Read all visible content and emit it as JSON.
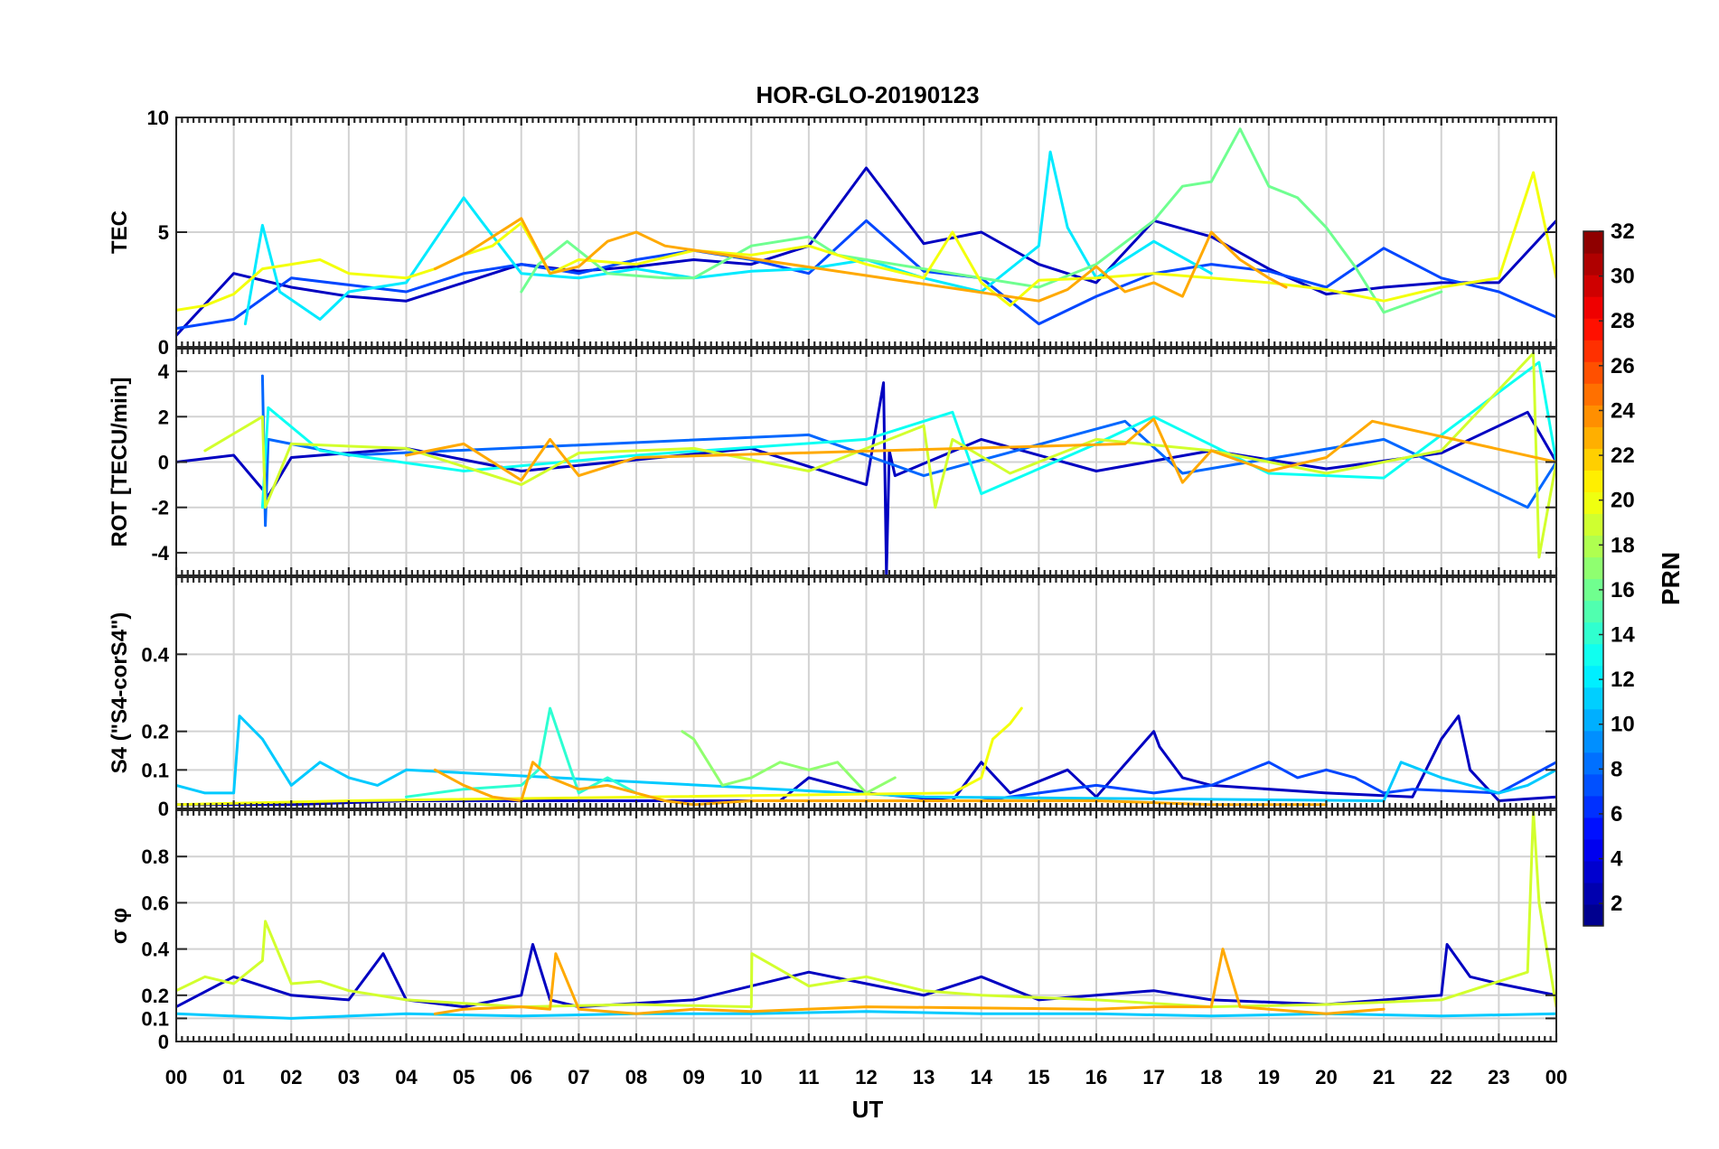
{
  "chart_data": {
    "type": "line",
    "title": "HOR-GLO-20190123",
    "xlabel": "UT",
    "x_ticks": [
      "00",
      "01",
      "02",
      "03",
      "04",
      "05",
      "06",
      "07",
      "08",
      "09",
      "10",
      "11",
      "12",
      "13",
      "14",
      "15",
      "16",
      "17",
      "18",
      "19",
      "20",
      "21",
      "22",
      "23",
      "00"
    ],
    "x_range": [
      0,
      24
    ],
    "colorbar": {
      "label": "PRN",
      "range": [
        1,
        32
      ],
      "ticks": [
        2,
        4,
        6,
        8,
        10,
        12,
        14,
        16,
        18,
        20,
        22,
        24,
        26,
        28,
        30,
        32
      ],
      "colormap": "jet",
      "levels": 32
    },
    "panels": [
      {
        "id": "tec",
        "ylabel": "TEC",
        "ylim": [
          0,
          10
        ],
        "yticks": [
          0,
          5,
          10
        ],
        "series": [
          {
            "prn": 3,
            "x": [
              0.0,
              1.0,
              2.0,
              3.0,
              4.0,
              5.0,
              6.0,
              7.0,
              8.0,
              9.0,
              10.0,
              11.0,
              12.0,
              13.0,
              14.0,
              15.0,
              16.0,
              17.0,
              18.0,
              19.0,
              20.0,
              21.0,
              22.0,
              23.0,
              24.0
            ],
            "y": [
              0.5,
              3.2,
              2.6,
              2.2,
              2.0,
              2.8,
              3.6,
              3.3,
              3.5,
              3.8,
              3.6,
              4.4,
              7.8,
              4.5,
              5.0,
              3.6,
              2.8,
              5.5,
              4.8,
              3.4,
              2.3,
              2.6,
              2.8,
              2.8,
              5.5
            ]
          },
          {
            "prn": 7,
            "x": [
              0.0,
              1.0,
              2.0,
              3.0,
              4.0,
              5.0,
              6.0,
              7.0,
              8.0,
              9.0,
              10.0,
              11.0,
              12.0,
              13.0,
              14.0,
              15.0,
              16.0,
              17.0,
              18.0,
              19.0,
              20.0,
              21.0,
              22.0,
              23.0,
              24.0
            ],
            "y": [
              0.8,
              1.2,
              3.0,
              2.7,
              2.4,
              3.2,
              3.6,
              3.2,
              3.8,
              4.2,
              3.8,
              3.2,
              5.5,
              3.3,
              3.0,
              1.0,
              2.2,
              3.2,
              3.6,
              3.3,
              2.6,
              4.3,
              3.0,
              2.4,
              1.3
            ]
          },
          {
            "prn": 12,
            "x": [
              1.2,
              1.5,
              1.8,
              2.5,
              3.0,
              4.0,
              5.0,
              5.3,
              6.0,
              7.0,
              8.0,
              9.0,
              10.0,
              11.0,
              12.0,
              13.0,
              14.0,
              15.0,
              15.2,
              15.5,
              16.0,
              17.0,
              18.0
            ],
            "y": [
              1.0,
              5.3,
              2.4,
              1.2,
              2.4,
              2.8,
              6.5,
              5.5,
              3.2,
              3.0,
              3.4,
              3.0,
              3.3,
              3.4,
              3.8,
              3.0,
              2.4,
              4.4,
              8.5,
              5.2,
              3.0,
              4.6,
              3.2
            ]
          },
          {
            "prn": 16,
            "x": [
              6.0,
              6.3,
              6.8,
              7.5,
              8.5,
              9.0,
              10.0,
              11.0,
              11.5,
              15.0,
              16.0,
              17.0,
              17.5,
              18.0,
              18.5,
              19.0,
              19.5,
              20.0,
              20.5,
              21.0,
              22.0
            ],
            "y": [
              2.4,
              3.6,
              4.6,
              3.2,
              3.0,
              3.0,
              4.4,
              4.8,
              4.0,
              2.6,
              3.6,
              5.5,
              7.0,
              7.2,
              9.5,
              7.0,
              6.5,
              5.2,
              3.5,
              1.5,
              2.4
            ]
          },
          {
            "prn": 20,
            "x": [
              0.0,
              0.5,
              1.0,
              1.5,
              2.0,
              2.5,
              3.0,
              4.0,
              4.5,
              5.0,
              5.5,
              6.0,
              6.5,
              7.0,
              8.0,
              9.0,
              10.0,
              11.0,
              12.0,
              13.0,
              13.5,
              14.0,
              14.5,
              15.0,
              16.0,
              17.0,
              18.0,
              19.0,
              20.0,
              21.0,
              22.0,
              23.0,
              23.6,
              24.0
            ],
            "y": [
              1.6,
              1.8,
              2.3,
              3.4,
              3.6,
              3.8,
              3.2,
              3.0,
              3.4,
              4.0,
              4.4,
              5.4,
              3.2,
              3.8,
              3.6,
              4.2,
              4.0,
              4.4,
              3.6,
              3.0,
              5.0,
              2.8,
              1.8,
              2.9,
              3.0,
              3.2,
              3.0,
              2.8,
              2.5,
              2.0,
              2.6,
              3.0,
              7.6,
              3.0
            ]
          },
          {
            "prn": 23,
            "x": [
              4.5,
              5.0,
              6.0,
              6.5,
              7.0,
              7.5,
              8.0,
              8.5,
              15.0,
              15.5,
              16.0,
              16.5,
              17.0,
              17.5,
              18.0,
              18.5,
              19.0,
              19.3
            ],
            "y": [
              3.4,
              4.0,
              5.6,
              3.2,
              3.5,
              4.6,
              5.0,
              4.4,
              2.0,
              2.5,
              3.5,
              2.4,
              2.8,
              2.2,
              5.0,
              3.8,
              3.0,
              2.6
            ]
          }
        ]
      },
      {
        "id": "rot",
        "ylabel": "ROT [TECU/min]",
        "ylim": [
          -5,
          5
        ],
        "yticks": [
          -4,
          -2,
          0,
          2,
          4
        ],
        "series": [
          {
            "prn": 3,
            "x": [
              0.0,
              1.0,
              1.6,
              2.0,
              4.0,
              6.0,
              8.0,
              10.0,
              12.0,
              12.3,
              12.35,
              12.4,
              12.5,
              14.0,
              16.0,
              18.0,
              20.0,
              22.0,
              23.5,
              24.0
            ],
            "y": [
              0.0,
              0.3,
              -1.5,
              0.2,
              0.6,
              -0.4,
              0.1,
              0.6,
              -1.0,
              3.5,
              -5.0,
              0.5,
              -0.6,
              1.0,
              -0.4,
              0.5,
              -0.3,
              0.4,
              2.2,
              0.0
            ]
          },
          {
            "prn": 8,
            "x": [
              1.5,
              1.55,
              1.6,
              3.0,
              11.0,
              13.0,
              16.5,
              17.5,
              21.0,
              23.5,
              24.0
            ],
            "y": [
              3.8,
              -2.8,
              1.0,
              0.3,
              1.2,
              -0.6,
              1.8,
              -0.5,
              1.0,
              -2.0,
              0.0
            ]
          },
          {
            "prn": 13,
            "x": [
              1.5,
              1.6,
              2.5,
              5.0,
              8.0,
              12.0,
              13.5,
              14.0,
              16.0,
              17.0,
              19.0,
              21.0,
              23.7,
              24.0
            ],
            "y": [
              -2.0,
              2.4,
              0.5,
              -0.4,
              0.3,
              1.0,
              2.2,
              -1.4,
              0.8,
              2.0,
              -0.5,
              -0.7,
              4.4,
              0.0
            ]
          },
          {
            "prn": 19,
            "x": [
              0.5,
              1.5,
              1.55,
              2.0,
              4.0,
              6.0,
              7.0,
              9.0,
              11.0,
              13.0,
              13.2,
              13.5,
              14.5,
              16.0,
              18.0,
              20.0,
              22.0,
              23.6,
              23.7,
              24.0
            ],
            "y": [
              0.5,
              2.0,
              -2.0,
              0.8,
              0.6,
              -1.0,
              0.4,
              0.6,
              -0.4,
              1.6,
              -2.0,
              1.0,
              -0.5,
              1.0,
              0.5,
              -0.5,
              0.5,
              4.8,
              -4.2,
              0.0
            ]
          },
          {
            "prn": 23,
            "x": [
              4.0,
              5.0,
              6.0,
              6.5,
              7.0,
              8.0,
              16.5,
              17.0,
              17.5,
              18.0,
              19.0,
              20.0,
              20.8,
              24.0
            ],
            "y": [
              0.3,
              0.8,
              -0.8,
              1.0,
              -0.6,
              0.2,
              0.8,
              1.9,
              -0.9,
              0.5,
              -0.4,
              0.2,
              1.8,
              0.0
            ]
          }
        ]
      },
      {
        "id": "s4",
        "ylabel": "S4 (\"S4-corS4\")",
        "ylim": [
          0,
          0.6
        ],
        "yticks": [
          0,
          0.1,
          0.2,
          0.4
        ],
        "series": [
          {
            "prn": 3,
            "x": [
              0.0,
              2.0,
              4.0,
              10.5,
              11.0,
              12.0,
              13.5,
              14.0,
              14.5,
              15.5,
              16.0,
              17.0,
              17.1,
              17.5,
              18.0,
              20.0,
              21.5,
              22.0,
              22.3,
              22.5,
              23.0,
              24.0
            ],
            "y": [
              0.01,
              0.01,
              0.02,
              0.02,
              0.08,
              0.04,
              0.02,
              0.12,
              0.04,
              0.1,
              0.03,
              0.2,
              0.16,
              0.08,
              0.06,
              0.04,
              0.03,
              0.18,
              0.24,
              0.1,
              0.02,
              0.03
            ]
          },
          {
            "prn": 7,
            "x": [
              14.0,
              15.0,
              16.0,
              17.0,
              18.0,
              19.0,
              19.5,
              20.0,
              20.5,
              21.0,
              21.5,
              23.0,
              24.0
            ],
            "y": [
              0.02,
              0.04,
              0.06,
              0.04,
              0.06,
              0.12,
              0.08,
              0.1,
              0.08,
              0.04,
              0.05,
              0.04,
              0.12
            ]
          },
          {
            "prn": 11,
            "x": [
              0.0,
              0.5,
              1.0,
              1.1,
              1.5,
              2.0,
              2.5,
              3.0,
              3.5,
              4.0,
              13.0,
              21.0,
              21.3,
              22.0,
              22.5,
              23.0,
              23.5,
              24.0
            ],
            "y": [
              0.06,
              0.04,
              0.04,
              0.24,
              0.18,
              0.06,
              0.12,
              0.08,
              0.06,
              0.1,
              0.03,
              0.02,
              0.12,
              0.08,
              0.06,
              0.04,
              0.06,
              0.1
            ]
          },
          {
            "prn": 14,
            "x": [
              4.0,
              5.0,
              6.0,
              6.3,
              6.5,
              7.0,
              7.5,
              8.0
            ],
            "y": [
              0.03,
              0.05,
              0.06,
              0.1,
              0.26,
              0.04,
              0.08,
              0.04
            ]
          },
          {
            "prn": 17,
            "x": [
              8.8,
              9.0,
              9.5,
              10.0,
              10.5,
              11.0,
              11.5,
              12.0,
              12.5
            ],
            "y": [
              0.2,
              0.18,
              0.06,
              0.08,
              0.12,
              0.1,
              0.12,
              0.04,
              0.08
            ]
          },
          {
            "prn": 20,
            "x": [
              0.0,
              3.0,
              13.5,
              14.0,
              14.2,
              14.5,
              14.7
            ],
            "y": [
              0.01,
              0.02,
              0.04,
              0.08,
              0.18,
              0.22,
              0.26
            ]
          },
          {
            "prn": 23,
            "x": [
              4.5,
              5.0,
              5.5,
              6.0,
              6.2,
              6.5,
              7.0,
              7.5,
              8.0,
              8.5,
              9.0,
              10.0,
              16.0,
              18.0,
              20.0
            ],
            "y": [
              0.1,
              0.06,
              0.03,
              0.02,
              0.12,
              0.08,
              0.05,
              0.06,
              0.04,
              0.02,
              0.01,
              0.02,
              0.02,
              0.01,
              0.01
            ]
          }
        ]
      },
      {
        "id": "sigma",
        "ylabel": "σ φ",
        "ylim": [
          0,
          1
        ],
        "yticks": [
          0,
          0.1,
          0.2,
          0.4,
          0.6,
          0.8
        ],
        "series": [
          {
            "prn": 3,
            "x": [
              0.0,
              1.0,
              2.0,
              3.0,
              3.6,
              4.0,
              5.0,
              6.0,
              6.2,
              6.5,
              7.0,
              9.0,
              11.0,
              12.0,
              13.0,
              14.0,
              15.0,
              16.0,
              17.0,
              18.0,
              20.0,
              22.0,
              22.1,
              22.5,
              23.0,
              24.0
            ],
            "y": [
              0.15,
              0.28,
              0.2,
              0.18,
              0.38,
              0.18,
              0.15,
              0.2,
              0.42,
              0.18,
              0.15,
              0.18,
              0.3,
              0.25,
              0.2,
              0.28,
              0.18,
              0.2,
              0.22,
              0.18,
              0.16,
              0.2,
              0.42,
              0.28,
              0.25,
              0.2
            ]
          },
          {
            "prn": 11,
            "x": [
              0.0,
              2.0,
              4.0,
              6.0,
              8.0,
              10.0,
              12.0,
              14.0,
              16.0,
              18.0,
              20.0,
              22.0,
              24.0
            ],
            "y": [
              0.12,
              0.1,
              0.12,
              0.11,
              0.12,
              0.12,
              0.13,
              0.12,
              0.12,
              0.11,
              0.12,
              0.11,
              0.12
            ]
          },
          {
            "prn": 19,
            "x": [
              0.0,
              0.5,
              1.0,
              1.5,
              1.55,
              2.0,
              2.5,
              3.0,
              4.0,
              6.0,
              8.0,
              10.0,
              10.01,
              11.0,
              12.0,
              13.0,
              14.0,
              16.0,
              18.0,
              20.0,
              22.0,
              23.5,
              23.6,
              23.7,
              24.0
            ],
            "y": [
              0.22,
              0.28,
              0.25,
              0.35,
              0.52,
              0.25,
              0.26,
              0.22,
              0.18,
              0.15,
              0.16,
              0.15,
              0.38,
              0.24,
              0.28,
              0.22,
              0.2,
              0.18,
              0.15,
              0.16,
              0.18,
              0.3,
              1.0,
              0.6,
              0.15
            ]
          },
          {
            "prn": 23,
            "x": [
              4.5,
              5.0,
              6.0,
              6.5,
              6.6,
              7.0,
              8.0,
              9.0,
              10.0,
              12.0,
              16.0,
              17.0,
              18.0,
              18.2,
              18.5,
              19.0,
              20.0,
              21.0
            ],
            "y": [
              0.12,
              0.14,
              0.15,
              0.14,
              0.38,
              0.14,
              0.12,
              0.14,
              0.13,
              0.15,
              0.14,
              0.15,
              0.15,
              0.4,
              0.15,
              0.14,
              0.12,
              0.14
            ]
          }
        ]
      }
    ]
  }
}
